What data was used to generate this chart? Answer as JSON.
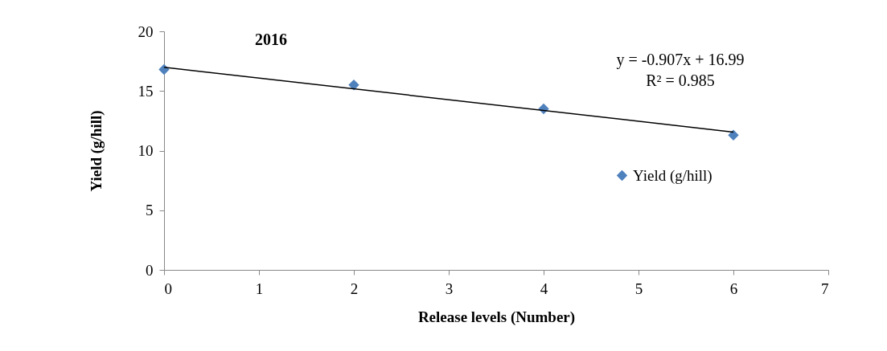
{
  "chart_data": {
    "type": "scatter",
    "title": "2016",
    "xlabel": "Release levels (Number)",
    "ylabel": "Yield (g/hill)",
    "annotations": [
      "y = -0.907x + 16.99",
      "R² = 0.985"
    ],
    "series": [
      {
        "name": "Yield (g/hill)",
        "color": "#4f81bd",
        "x": [
          0,
          2,
          4,
          6
        ],
        "values": [
          16.8,
          15.5,
          13.5,
          11.3
        ]
      },
      {
        "type": "line",
        "marker": "none",
        "color": "#000000",
        "x": [
          0,
          6
        ],
        "values": [
          16.99,
          11.55
        ]
      }
    ],
    "marker": "diamond",
    "xlim": [
      0,
      7
    ],
    "xticks": [
      0,
      1,
      2,
      3,
      4,
      5,
      6,
      7
    ],
    "ylim": [
      0,
      20
    ],
    "yticks": [
      0,
      5,
      10,
      15,
      20
    ],
    "grid": false,
    "legend": "right"
  }
}
